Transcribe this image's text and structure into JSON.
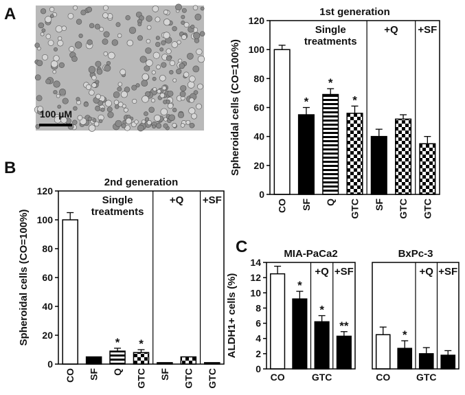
{
  "panel_labels": [
    "A",
    "B",
    "C"
  ],
  "image": {
    "scale_bar": "100 µM"
  },
  "chart_data": [
    {
      "type": "bar",
      "title": "1st generation",
      "ylabel": "Spheroidal cells (CO=100%)",
      "categories": [
        "CO",
        "SF",
        "Q",
        "GTC",
        "SF",
        "GTC",
        "GTC"
      ],
      "values": [
        100,
        55,
        69,
        56,
        40,
        52,
        35
      ],
      "errors": [
        3,
        5,
        4,
        5,
        5,
        3,
        5
      ],
      "fills": [
        "open",
        "solid",
        "stripes",
        "checker",
        "solid",
        "checker",
        "checker"
      ],
      "stars": [
        null,
        "*",
        "*",
        "*",
        null,
        null,
        null
      ],
      "groups": [
        {
          "label": [
            "Single",
            "treatments"
          ],
          "start": 1
        },
        {
          "label": [
            "+Q"
          ],
          "start": 4
        },
        {
          "label": [
            "+SF"
          ],
          "start": 6
        }
      ],
      "ylim": [
        0,
        120
      ],
      "yticks": [
        0,
        20,
        40,
        60,
        80,
        100,
        120
      ],
      "xtick_rotation": -90
    },
    {
      "type": "bar",
      "title": "2nd generation",
      "ylabel": "Spheroidal cells (CO=100%)",
      "categories": [
        "CO",
        "SF",
        "Q",
        "GTC",
        "SF",
        "GTC",
        "GTC"
      ],
      "values": [
        100,
        5,
        9,
        8,
        1,
        5,
        1
      ],
      "errors": [
        5,
        0,
        2,
        2,
        0,
        0,
        0
      ],
      "fills": [
        "open",
        "solid",
        "stripes",
        "checker",
        "solid",
        "checker",
        "solid"
      ],
      "stars": [
        null,
        null,
        "*",
        "*",
        null,
        null,
        null
      ],
      "groups": [
        {
          "label": [
            "Single",
            "treatments"
          ],
          "start": 1
        },
        {
          "label": [
            "+Q"
          ],
          "start": 4
        },
        {
          "label": [
            "+SF"
          ],
          "start": 6
        }
      ],
      "ylim": [
        0,
        120
      ],
      "yticks": [
        0,
        20,
        40,
        60,
        80,
        100,
        120
      ],
      "xtick_rotation": -90
    },
    {
      "type": "bar",
      "title": "MIA-PaCa2",
      "ylabel": "ALDH1+ cells (%)",
      "categories": [
        "CO",
        null,
        "GTC",
        null
      ],
      "values": [
        12.5,
        9.2,
        6.2,
        4.3
      ],
      "errors": [
        1,
        1,
        0.8,
        0.6
      ],
      "fills": [
        "open",
        "solid",
        "solid",
        "solid"
      ],
      "stars": [
        null,
        "*",
        "*",
        "**"
      ],
      "groups": [
        {
          "label": [
            "+Q"
          ],
          "start": 2
        },
        {
          "label": [
            "+SF"
          ],
          "start": 3
        }
      ],
      "ylim": [
        0,
        14
      ],
      "yticks": [
        0,
        2,
        4,
        6,
        8,
        10,
        12,
        14
      ],
      "xtick_rotation": 0
    },
    {
      "type": "bar",
      "title": "BxPc-3",
      "categories": [
        "CO",
        null,
        "GTC",
        null
      ],
      "values": [
        4.5,
        2.7,
        2.0,
        1.8
      ],
      "errors": [
        1,
        1,
        0.8,
        0.6
      ],
      "fills": [
        "open",
        "solid",
        "solid",
        "solid"
      ],
      "stars": [
        null,
        "*",
        null,
        null
      ],
      "groups": [
        {
          "label": [
            "+Q"
          ],
          "start": 2
        },
        {
          "label": [
            "+SF"
          ],
          "start": 3
        }
      ],
      "ylim": [
        0,
        14
      ],
      "xtick_rotation": 0
    }
  ]
}
